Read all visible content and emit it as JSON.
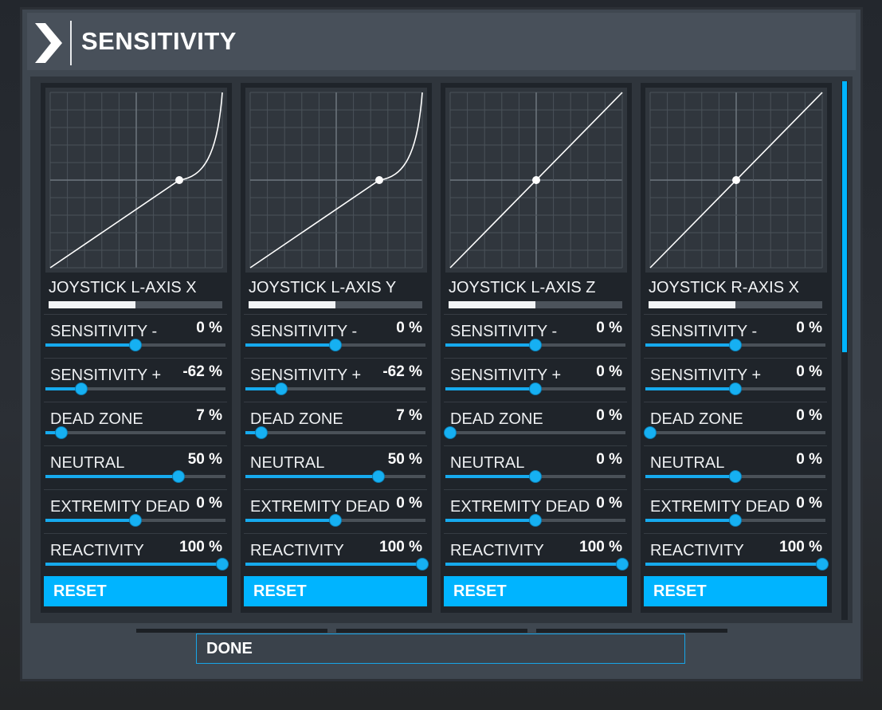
{
  "header": {
    "title": "SENSITIVITY",
    "icon": "chevron-right-icon"
  },
  "colors": {
    "accent": "#00b4ff",
    "panel": "#1f242a",
    "bg": "#3f4750"
  },
  "columns": [
    {
      "axis": "JOYSTICK L-AXIS X",
      "input_level": 0.5,
      "curve": "exponential",
      "rows": [
        {
          "label": "SENSITIVITY -",
          "value": "0 %",
          "position": 0.5
        },
        {
          "label": "SENSITIVITY +",
          "value": "-62 %",
          "position": 0.2
        },
        {
          "label": "DEAD ZONE",
          "value": "7 %",
          "position": 0.09
        },
        {
          "label": "NEUTRAL",
          "value": "50 %",
          "position": 0.74
        },
        {
          "label": "EXTREMITY DEAD ZONE",
          "value": "0 %",
          "position": 0.5
        },
        {
          "label": "REACTIVITY",
          "value": "100 %",
          "position": 1.0
        }
      ],
      "reset_label": "RESET"
    },
    {
      "axis": "JOYSTICK L-AXIS Y",
      "input_level": 0.5,
      "curve": "exponential",
      "rows": [
        {
          "label": "SENSITIVITY -",
          "value": "0 %",
          "position": 0.5
        },
        {
          "label": "SENSITIVITY +",
          "value": "-62 %",
          "position": 0.2
        },
        {
          "label": "DEAD ZONE",
          "value": "7 %",
          "position": 0.09
        },
        {
          "label": "NEUTRAL",
          "value": "50 %",
          "position": 0.74
        },
        {
          "label": "EXTREMITY DEAD ZONE",
          "value": "0 %",
          "position": 0.5
        },
        {
          "label": "REACTIVITY",
          "value": "100 %",
          "position": 1.0
        }
      ],
      "reset_label": "RESET"
    },
    {
      "axis": "JOYSTICK L-AXIS Z",
      "input_level": 0.5,
      "curve": "linear",
      "rows": [
        {
          "label": "SENSITIVITY -",
          "value": "0 %",
          "position": 0.5
        },
        {
          "label": "SENSITIVITY +",
          "value": "0 %",
          "position": 0.5
        },
        {
          "label": "DEAD ZONE",
          "value": "0 %",
          "position": 0.0
        },
        {
          "label": "NEUTRAL",
          "value": "0 %",
          "position": 0.5
        },
        {
          "label": "EXTREMITY DEAD ZONE",
          "value": "0 %",
          "position": 0.5
        },
        {
          "label": "REACTIVITY",
          "value": "100 %",
          "position": 1.0
        }
      ],
      "reset_label": "RESET"
    },
    {
      "axis": "JOYSTICK R-AXIS X",
      "input_level": 0.5,
      "curve": "linear",
      "rows": [
        {
          "label": "SENSITIVITY -",
          "value": "0 %",
          "position": 0.5
        },
        {
          "label": "SENSITIVITY +",
          "value": "0 %",
          "position": 0.5
        },
        {
          "label": "DEAD ZONE",
          "value": "0 %",
          "position": 0.0
        },
        {
          "label": "NEUTRAL",
          "value": "0 %",
          "position": 0.5
        },
        {
          "label": "EXTREMITY DEAD ZONE",
          "value": "0 %",
          "position": 0.5
        },
        {
          "label": "REACTIVITY",
          "value": "100 %",
          "position": 1.0
        }
      ],
      "reset_label": "RESET"
    }
  ],
  "footer": {
    "done_label": "DONE"
  }
}
